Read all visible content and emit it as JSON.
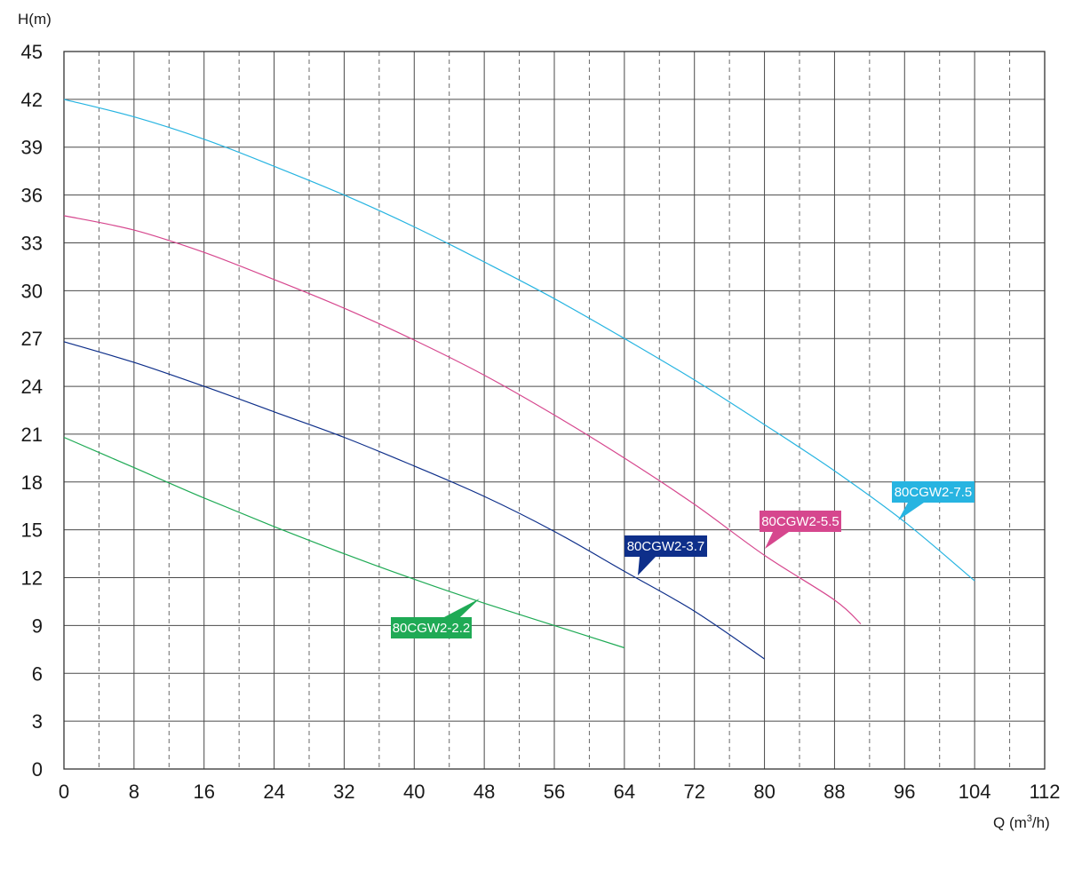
{
  "chart_data": {
    "type": "line",
    "title": "",
    "ylabel": "H(m)",
    "xlabel_prefix": "Q (m",
    "xlabel_sup": "3",
    "xlabel_suffix": "/h)",
    "xlim": [
      0,
      112
    ],
    "ylim": [
      0,
      45
    ],
    "x_ticks": [
      0,
      8,
      16,
      24,
      32,
      40,
      48,
      56,
      64,
      72,
      80,
      88,
      96,
      104,
      112
    ],
    "y_ticks": [
      0,
      3,
      6,
      9,
      12,
      15,
      18,
      21,
      24,
      27,
      30,
      33,
      36,
      39,
      42,
      45
    ],
    "grid": true,
    "series": [
      {
        "name": "80CGW2-2.2",
        "color": "#1faa55",
        "x": [
          0,
          8,
          16,
          24,
          32,
          40,
          48,
          56,
          64
        ],
        "y": [
          20.8,
          18.9,
          17.0,
          15.2,
          13.5,
          11.9,
          10.4,
          9.0,
          7.6
        ]
      },
      {
        "name": "80CGW2-3.7",
        "color": "#0e2f8a",
        "x": [
          0,
          8,
          16,
          24,
          32,
          40,
          48,
          56,
          64,
          72,
          80
        ],
        "y": [
          26.8,
          25.5,
          24.0,
          22.4,
          20.8,
          19.0,
          17.1,
          14.9,
          12.4,
          9.9,
          6.9
        ]
      },
      {
        "name": "80CGW2-5.5",
        "color": "#d6478e",
        "x": [
          0,
          8,
          16,
          24,
          32,
          40,
          48,
          56,
          64,
          72,
          80,
          88,
          91
        ],
        "y": [
          34.7,
          33.8,
          32.4,
          30.7,
          28.9,
          26.9,
          24.7,
          22.2,
          19.5,
          16.6,
          13.4,
          10.6,
          9.1
        ]
      },
      {
        "name": "80CGW2-7.5",
        "color": "#27b4e1",
        "x": [
          0,
          8,
          16,
          24,
          32,
          40,
          48,
          56,
          64,
          72,
          80,
          88,
          96,
          104
        ],
        "y": [
          42.0,
          40.9,
          39.5,
          37.8,
          36.0,
          34.0,
          31.8,
          29.5,
          27.0,
          24.4,
          21.6,
          18.7,
          15.5,
          11.8
        ]
      }
    ],
    "labels": [
      {
        "text": "80CGW2-2.2",
        "color": "#1faa55"
      },
      {
        "text": "80CGW2-3.7",
        "color": "#0e2f8a"
      },
      {
        "text": "80CGW2-5.5",
        "color": "#d6478e"
      },
      {
        "text": "80CGW2-7.5",
        "color": "#27b4e1"
      }
    ]
  }
}
